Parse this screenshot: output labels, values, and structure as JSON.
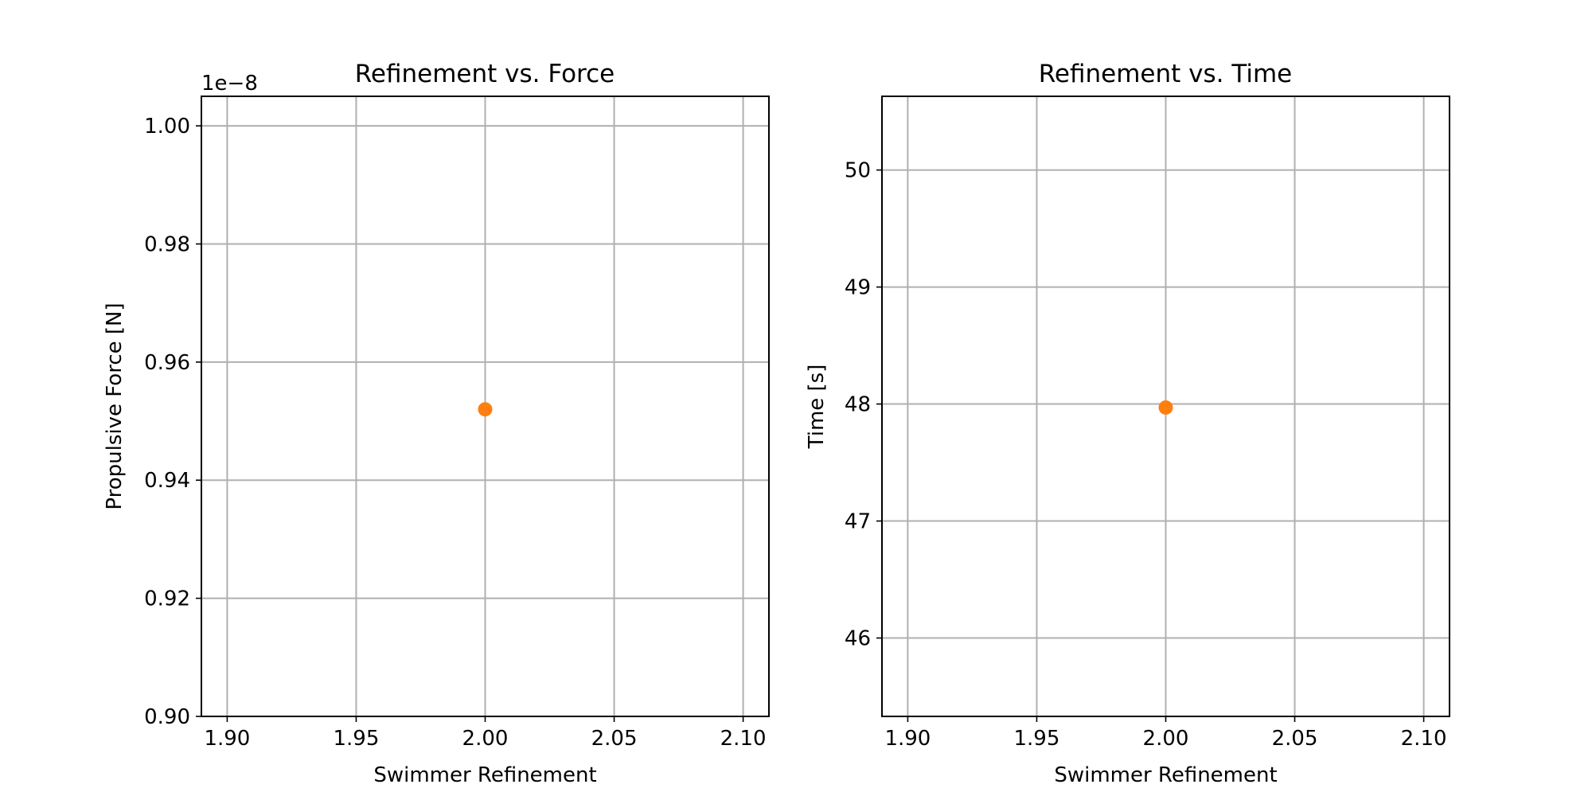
{
  "chart_data": [
    {
      "type": "scatter",
      "title": "Refinement vs. Force",
      "xlabel": "Swimmer Refinement",
      "ylabel": "Propulsive Force [N]",
      "offset_text": "1e−8",
      "xlim": [
        1.89,
        2.11
      ],
      "ylim": [
        0.9,
        1.005
      ],
      "xticks": [
        1.9,
        1.95,
        2.0,
        2.05,
        2.1
      ],
      "xtick_labels": [
        "1.90",
        "1.95",
        "2.00",
        "2.05",
        "2.10"
      ],
      "yticks": [
        0.9,
        0.92,
        0.94,
        0.96,
        0.98,
        1.0
      ],
      "ytick_labels": [
        "0.90",
        "0.92",
        "0.94",
        "0.96",
        "0.98",
        "1.00"
      ],
      "grid": true,
      "series": [
        {
          "x": [
            2.0
          ],
          "y": [
            0.952
          ],
          "color": "#ff7f0e"
        }
      ]
    },
    {
      "type": "scatter",
      "title": "Refinement vs. Time",
      "xlabel": "Swimmer Refinement",
      "ylabel": "Time [s]",
      "xlim": [
        1.89,
        2.11
      ],
      "ylim": [
        45.33,
        50.63
      ],
      "xticks": [
        1.9,
        1.95,
        2.0,
        2.05,
        2.1
      ],
      "xtick_labels": [
        "1.90",
        "1.95",
        "2.00",
        "2.05",
        "2.10"
      ],
      "yticks": [
        46,
        47,
        48,
        49,
        50
      ],
      "ytick_labels": [
        "46",
        "47",
        "48",
        "49",
        "50"
      ],
      "grid": true,
      "series": [
        {
          "x": [
            2.0
          ],
          "y": [
            47.97
          ],
          "color": "#ff7f0e"
        }
      ]
    }
  ]
}
